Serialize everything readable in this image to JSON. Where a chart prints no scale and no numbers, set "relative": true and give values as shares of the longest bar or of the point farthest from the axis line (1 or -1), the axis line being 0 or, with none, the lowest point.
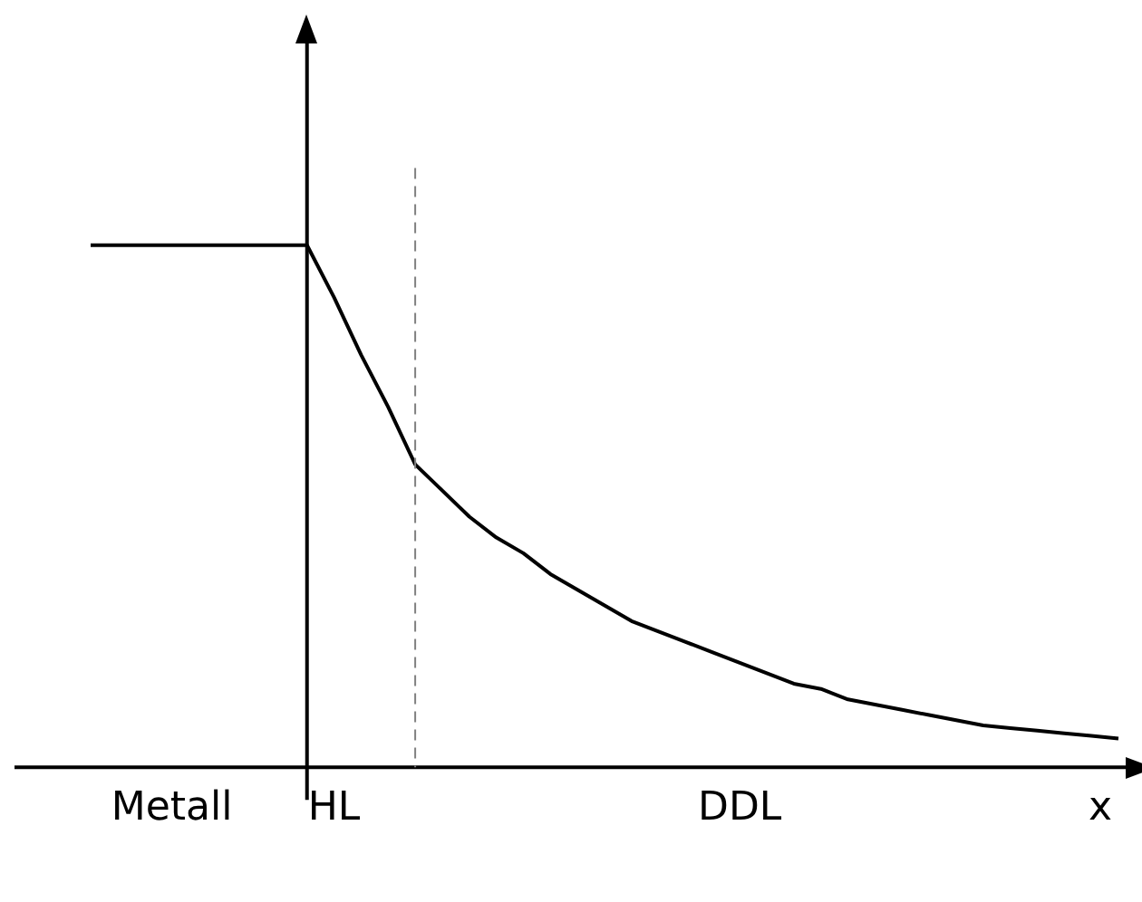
{
  "chart_data": {
    "type": "line",
    "relative": true,
    "xlabel": "x",
    "categories": [
      null,
      null,
      null,
      "Metall",
      null,
      null,
      null,
      null,
      null,
      "HL",
      null,
      null,
      null,
      null,
      null,
      null,
      null,
      null,
      null,
      null,
      null,
      null,
      null,
      null,
      "DDL",
      null,
      null,
      null,
      null,
      null,
      null,
      null,
      null,
      null,
      null,
      null,
      null,
      null,
      null
    ],
    "series": [
      {
        "color": "#000000",
        "values": [
          1,
          1,
          1,
          1,
          1,
          1,
          1,
          1,
          1,
          0.9,
          0.79,
          0.69,
          0.58,
          0.53,
          0.48,
          0.44,
          0.41,
          0.37,
          0.34,
          0.31,
          0.28,
          0.26,
          0.24,
          0.22,
          0.2,
          0.18,
          0.16,
          0.15,
          0.13,
          0.12,
          0.11,
          0.1,
          0.09,
          0.08,
          0.075,
          0.07,
          0.065,
          0.06,
          0.055
        ]
      }
    ],
    "marker": "none",
    "line_style": "solid",
    "grid": false,
    "legend": false
  }
}
